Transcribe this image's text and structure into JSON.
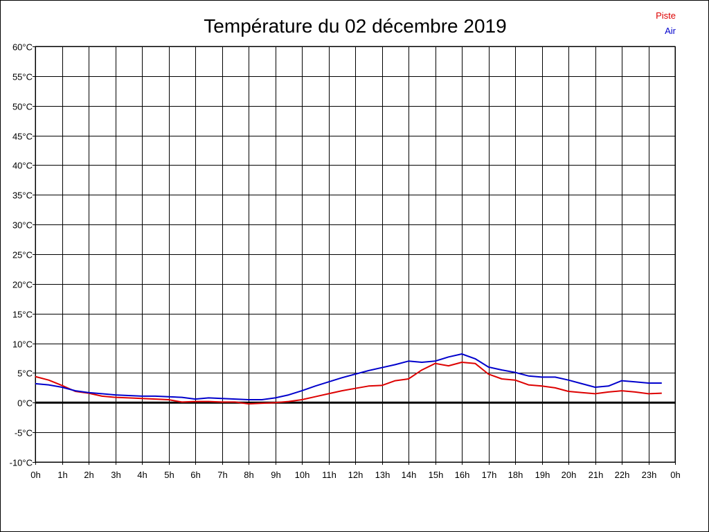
{
  "chart_data": {
    "type": "line",
    "title": "Température du 02 décembre 2019",
    "xlabel": "",
    "ylabel": "",
    "grid": true,
    "legend_position": "top-right",
    "xlim": [
      0,
      24
    ],
    "ylim": [
      -10,
      60
    ],
    "x_tick_labels": [
      "0h",
      "1h",
      "2h",
      "3h",
      "4h",
      "5h",
      "6h",
      "7h",
      "8h",
      "9h",
      "10h",
      "11h",
      "12h",
      "13h",
      "14h",
      "15h",
      "16h",
      "17h",
      "18h",
      "19h",
      "20h",
      "21h",
      "22h",
      "23h",
      "0h"
    ],
    "y_tick_labels": [
      "60°C",
      "55°C",
      "50°C",
      "45°C",
      "40°C",
      "35°C",
      "30°C",
      "25°C",
      "20°C",
      "15°C",
      "10°C",
      "5°C",
      "0°C",
      "-5°C",
      "-10°C"
    ],
    "y_tick_values": [
      60,
      55,
      50,
      45,
      40,
      35,
      30,
      25,
      20,
      15,
      10,
      5,
      0,
      -5,
      -10
    ],
    "x": [
      0,
      0.5,
      1,
      1.5,
      2,
      2.5,
      3,
      3.5,
      4,
      4.5,
      5,
      5.5,
      6,
      6.5,
      7,
      7.5,
      8,
      8.5,
      9,
      9.5,
      10,
      10.5,
      11,
      11.5,
      12,
      12.5,
      13,
      13.5,
      14,
      14.5,
      15,
      15.5,
      16,
      16.5,
      17,
      17.5,
      18,
      18.5,
      19,
      19.5,
      20,
      20.5,
      21,
      21.5,
      22,
      22.5,
      23,
      23.5
    ],
    "series": [
      {
        "name": "Piste",
        "color": "#dd0000",
        "values": [
          4.4,
          3.8,
          2.9,
          1.9,
          1.6,
          1.1,
          0.9,
          0.8,
          0.7,
          0.6,
          0.5,
          0.1,
          0.2,
          0.2,
          0.1,
          0.1,
          -0.2,
          -0.1,
          0.0,
          0.2,
          0.5,
          1.0,
          1.5,
          2.0,
          2.4,
          2.8,
          2.9,
          3.7,
          4.0,
          5.5,
          6.6,
          6.2,
          6.8,
          6.6,
          4.8,
          4.0,
          3.8,
          3.0,
          2.8,
          2.5,
          1.9,
          1.7,
          1.5,
          1.8,
          2.0,
          1.8,
          1.5,
          1.6
        ]
      },
      {
        "name": "Air",
        "color": "#0000cc",
        "values": [
          3.2,
          3.0,
          2.6,
          2.0,
          1.7,
          1.5,
          1.3,
          1.2,
          1.1,
          1.1,
          1.0,
          0.9,
          0.6,
          0.8,
          0.7,
          0.6,
          0.5,
          0.5,
          0.8,
          1.3,
          2.0,
          2.8,
          3.5,
          4.2,
          4.8,
          5.4,
          5.9,
          6.4,
          7.0,
          6.8,
          7.0,
          7.7,
          8.2,
          7.4,
          6.0,
          5.5,
          5.1,
          4.5,
          4.3,
          4.3,
          3.8,
          3.2,
          2.6,
          2.8,
          3.7,
          3.5,
          3.3,
          3.3
        ]
      }
    ]
  }
}
